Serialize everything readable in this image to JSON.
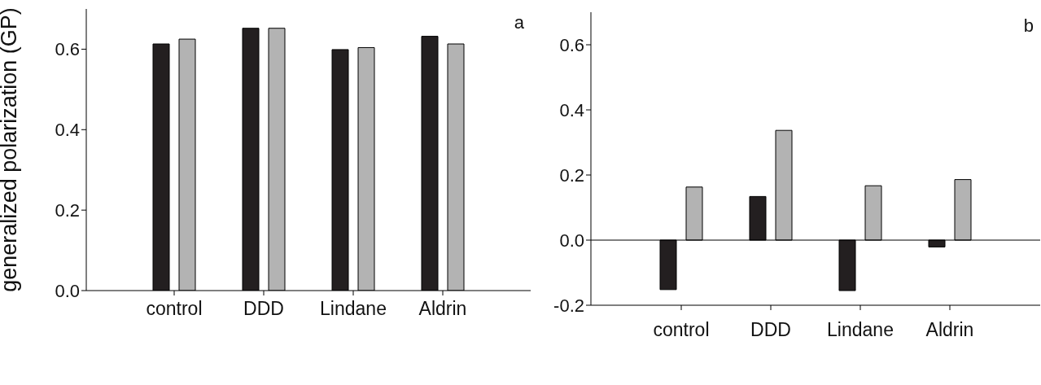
{
  "chart_data": [
    {
      "type": "bar",
      "ylabel": "generalized polarization (GP)",
      "categories": [
        "control",
        "DDD",
        "Lindane",
        "Aldrin"
      ],
      "series": [
        {
          "color": "#231f20",
          "values": [
            0.613,
            0.652,
            0.599,
            0.632
          ]
        },
        {
          "color": "#b3b3b3",
          "values": [
            0.625,
            0.652,
            0.604,
            0.613
          ]
        }
      ],
      "ylim": [
        0,
        0.7
      ],
      "yticks": [
        {
          "value": 0,
          "label": "0.0"
        },
        0.2,
        0.4,
        0.6
      ],
      "annotations": [
        "a"
      ]
    },
    {
      "type": "bar",
      "categories": [
        "control",
        "DDD",
        "Lindane",
        "Aldrin"
      ],
      "series": [
        {
          "color": "#231f20",
          "values": [
            -0.152,
            0.134,
            -0.155,
            -0.021
          ]
        },
        {
          "color": "#b3b3b3",
          "values": [
            0.163,
            0.337,
            0.167,
            0.186
          ]
        }
      ],
      "ylim": [
        -0.2,
        0.7
      ],
      "yticks": [
        -0.2,
        {
          "value": 0,
          "label": "0.0"
        },
        0.2,
        0.4,
        0.6
      ],
      "ref_lines": [
        {
          "axis": "y",
          "value": 0,
          "color": "#000000"
        }
      ],
      "annotations": [
        "b"
      ]
    }
  ]
}
